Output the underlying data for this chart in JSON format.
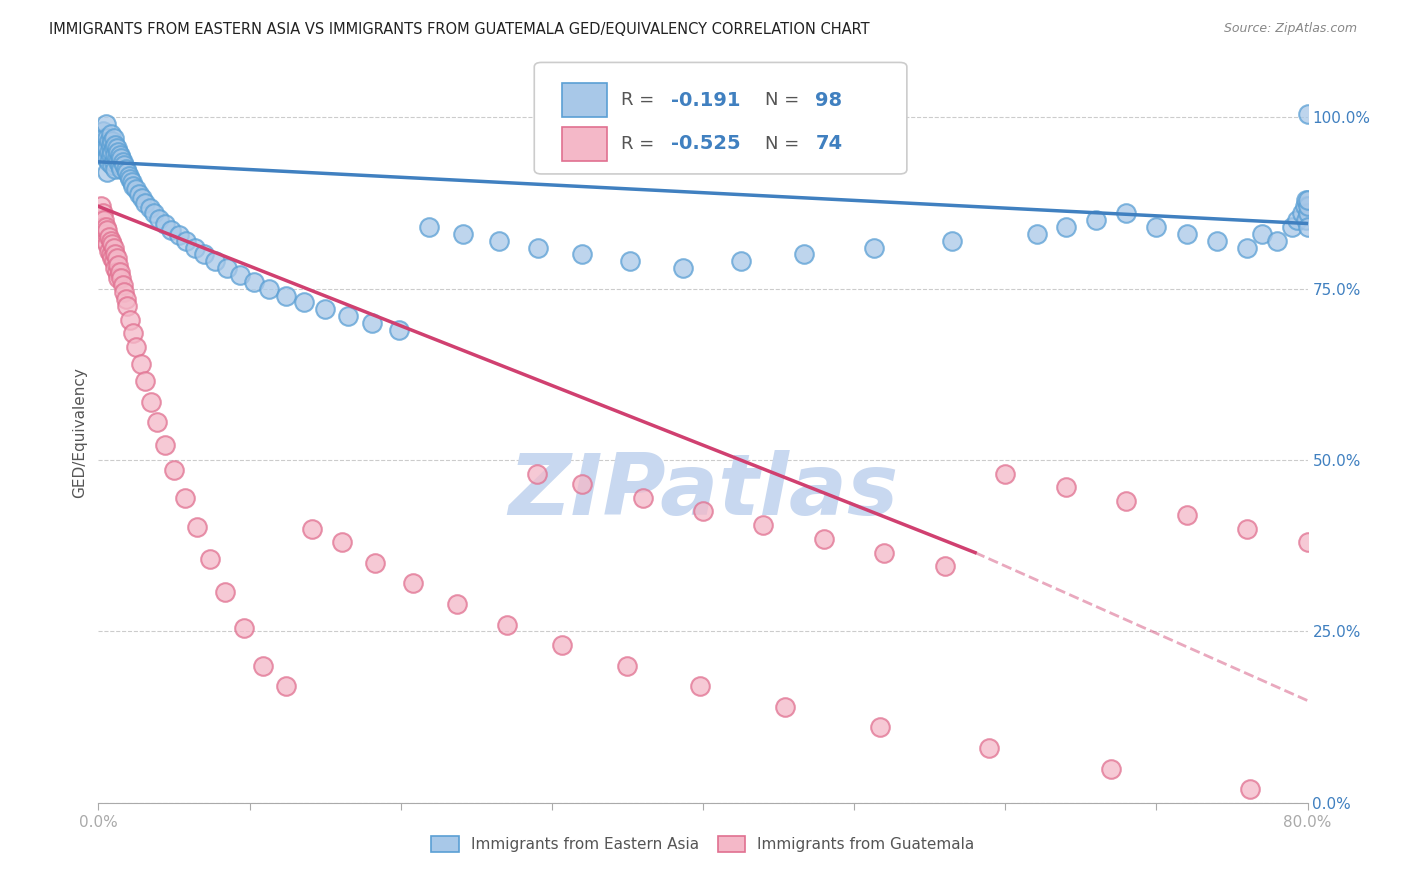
{
  "title": "IMMIGRANTS FROM EASTERN ASIA VS IMMIGRANTS FROM GUATEMALA GED/EQUIVALENCY CORRELATION CHART",
  "source": "Source: ZipAtlas.com",
  "ylabel": "GED/Equivalency",
  "blue_label": "Immigrants from Eastern Asia",
  "pink_label": "Immigrants from Guatemala",
  "blue_R": -0.191,
  "blue_N": 98,
  "pink_R": -0.525,
  "pink_N": 74,
  "blue_color": "#a8c8e8",
  "pink_color": "#f4b8c8",
  "blue_edge_color": "#5a9fd4",
  "pink_edge_color": "#e07090",
  "blue_line_color": "#4080c0",
  "pink_line_color": "#d04070",
  "watermark": "ZIPatlas",
  "watermark_color": "#c8d8f0",
  "background_color": "#ffffff",
  "right_ytick_vals": [
    0.0,
    0.25,
    0.5,
    0.75,
    1.0
  ],
  "right_ytick_labels": [
    "0.0%",
    "25.0%",
    "50.0%",
    "75.0%",
    "100.0%"
  ],
  "xlim": [
    0.0,
    0.8
  ],
  "ylim": [
    0.0,
    1.08
  ],
  "blue_trend": [
    0.0,
    0.8,
    0.935,
    0.845
  ],
  "pink_trend_solid": [
    0.0,
    0.58,
    0.87,
    0.365
  ],
  "pink_trend_dashed": [
    0.58,
    0.85,
    0.365,
    0.1
  ],
  "blue_scatter_x": [
    0.003,
    0.003,
    0.004,
    0.004,
    0.005,
    0.005,
    0.005,
    0.006,
    0.006,
    0.006,
    0.006,
    0.007,
    0.007,
    0.007,
    0.008,
    0.008,
    0.008,
    0.009,
    0.009,
    0.009,
    0.01,
    0.01,
    0.01,
    0.011,
    0.011,
    0.011,
    0.012,
    0.012,
    0.013,
    0.013,
    0.014,
    0.014,
    0.015,
    0.015,
    0.016,
    0.017,
    0.018,
    0.019,
    0.02,
    0.021,
    0.022,
    0.023,
    0.025,
    0.027,
    0.029,
    0.031,
    0.034,
    0.037,
    0.04,
    0.044,
    0.048,
    0.053,
    0.058,
    0.064,
    0.07,
    0.077,
    0.085,
    0.094,
    0.103,
    0.113,
    0.124,
    0.136,
    0.15,
    0.165,
    0.181,
    0.199,
    0.219,
    0.241,
    0.265,
    0.291,
    0.32,
    0.352,
    0.387,
    0.425,
    0.467,
    0.513,
    0.565,
    0.621,
    0.64,
    0.66,
    0.68,
    0.7,
    0.72,
    0.74,
    0.76,
    0.77,
    0.78,
    0.79,
    0.793,
    0.796,
    0.798,
    0.799,
    0.799,
    0.8,
    0.8,
    0.8,
    0.8,
    0.8
  ],
  "blue_scatter_y": [
    0.98,
    0.96,
    0.97,
    0.95,
    0.99,
    0.96,
    0.94,
    0.97,
    0.955,
    0.94,
    0.92,
    0.965,
    0.95,
    0.935,
    0.975,
    0.96,
    0.945,
    0.965,
    0.95,
    0.93,
    0.97,
    0.955,
    0.935,
    0.96,
    0.945,
    0.925,
    0.955,
    0.94,
    0.95,
    0.935,
    0.945,
    0.93,
    0.94,
    0.925,
    0.935,
    0.93,
    0.925,
    0.92,
    0.915,
    0.91,
    0.905,
    0.9,
    0.895,
    0.888,
    0.882,
    0.875,
    0.868,
    0.86,
    0.852,
    0.844,
    0.836,
    0.828,
    0.819,
    0.81,
    0.8,
    0.79,
    0.78,
    0.77,
    0.76,
    0.75,
    0.74,
    0.73,
    0.72,
    0.71,
    0.7,
    0.69,
    0.84,
    0.83,
    0.82,
    0.81,
    0.8,
    0.79,
    0.78,
    0.79,
    0.8,
    0.81,
    0.82,
    0.83,
    0.84,
    0.85,
    0.86,
    0.84,
    0.83,
    0.82,
    0.81,
    0.83,
    0.82,
    0.84,
    0.85,
    0.86,
    0.87,
    0.88,
    0.85,
    0.86,
    0.87,
    0.88,
    1.005,
    0.84
  ],
  "pink_scatter_x": [
    0.002,
    0.002,
    0.003,
    0.003,
    0.004,
    0.004,
    0.005,
    0.005,
    0.006,
    0.006,
    0.007,
    0.007,
    0.008,
    0.008,
    0.009,
    0.009,
    0.01,
    0.01,
    0.011,
    0.011,
    0.012,
    0.012,
    0.013,
    0.013,
    0.014,
    0.015,
    0.016,
    0.017,
    0.018,
    0.019,
    0.021,
    0.023,
    0.025,
    0.028,
    0.031,
    0.035,
    0.039,
    0.044,
    0.05,
    0.057,
    0.065,
    0.074,
    0.084,
    0.096,
    0.109,
    0.124,
    0.141,
    0.161,
    0.183,
    0.208,
    0.237,
    0.27,
    0.307,
    0.35,
    0.398,
    0.454,
    0.517,
    0.589,
    0.67,
    0.762,
    0.29,
    0.32,
    0.36,
    0.4,
    0.44,
    0.48,
    0.52,
    0.56,
    0.6,
    0.64,
    0.68,
    0.72,
    0.76,
    0.8
  ],
  "pink_scatter_y": [
    0.87,
    0.85,
    0.86,
    0.84,
    0.85,
    0.83,
    0.84,
    0.82,
    0.835,
    0.815,
    0.825,
    0.805,
    0.82,
    0.8,
    0.815,
    0.795,
    0.81,
    0.79,
    0.8,
    0.78,
    0.795,
    0.775,
    0.785,
    0.765,
    0.775,
    0.765,
    0.755,
    0.745,
    0.735,
    0.725,
    0.705,
    0.685,
    0.665,
    0.64,
    0.615,
    0.585,
    0.555,
    0.522,
    0.485,
    0.445,
    0.402,
    0.356,
    0.307,
    0.255,
    0.2,
    0.17,
    0.4,
    0.38,
    0.35,
    0.32,
    0.29,
    0.26,
    0.23,
    0.2,
    0.17,
    0.14,
    0.11,
    0.08,
    0.05,
    0.02,
    0.48,
    0.465,
    0.445,
    0.425,
    0.405,
    0.385,
    0.365,
    0.345,
    0.48,
    0.46,
    0.44,
    0.42,
    0.4,
    0.38
  ]
}
